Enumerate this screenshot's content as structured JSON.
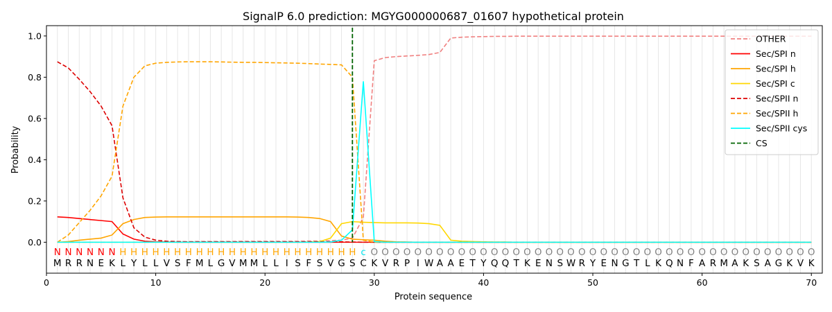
{
  "chart_data": {
    "type": "line",
    "title": "SignalP 6.0 prediction: MGYG000000687_01607 hypothetical protein",
    "xlabel": "Protein sequence",
    "ylabel": "Probability",
    "xlim": [
      0,
      71
    ],
    "ylim": [
      -0.15,
      1.05
    ],
    "x_ticks": [
      0,
      10,
      20,
      30,
      40,
      50,
      60,
      70
    ],
    "y_ticks": [
      0.0,
      0.2,
      0.4,
      0.6,
      0.8,
      1.0
    ],
    "x_tick_labels": [
      "0",
      "10",
      "20",
      "30",
      "40",
      "50",
      "60",
      "70"
    ],
    "y_tick_labels": [
      "0.0",
      "0.2",
      "0.4",
      "0.6",
      "0.8",
      "1.0"
    ],
    "grid": "vertical lines at each residue",
    "legend_position": "top-right",
    "sequence": [
      "M",
      "R",
      "R",
      "N",
      "E",
      "K",
      "L",
      "Y",
      "L",
      "L",
      "V",
      "S",
      "F",
      "M",
      "L",
      "G",
      "V",
      "M",
      "M",
      "L",
      "L",
      "I",
      "S",
      "F",
      "S",
      "V",
      "G",
      "S",
      "C",
      "K",
      "V",
      "R",
      "P",
      "I",
      "W",
      "A",
      "A",
      "E",
      "T",
      "Y",
      "Q",
      "Q",
      "T",
      "K",
      "E",
      "N",
      "S",
      "W",
      "R",
      "Y",
      "E",
      "N",
      "G",
      "T",
      "L",
      "K",
      "Q",
      "N",
      "F",
      "A",
      "R",
      "M",
      "A",
      "K",
      "S",
      "A",
      "G",
      "K",
      "V",
      "K"
    ],
    "labels": [
      "N",
      "N",
      "N",
      "N",
      "N",
      "N",
      "H",
      "H",
      "H",
      "H",
      "H",
      "H",
      "H",
      "H",
      "H",
      "H",
      "H",
      "H",
      "H",
      "H",
      "H",
      "H",
      "H",
      "H",
      "H",
      "H",
      "H",
      "H",
      "C",
      "O",
      "O",
      "O",
      "O",
      "O",
      "O",
      "O",
      "O",
      "O",
      "O",
      "O",
      "O",
      "O",
      "O",
      "O",
      "O",
      "O",
      "O",
      "O",
      "O",
      "O",
      "O",
      "O",
      "O",
      "O",
      "O",
      "O",
      "O",
      "O",
      "O",
      "O",
      "O",
      "O",
      "O",
      "O",
      "O",
      "O",
      "O",
      "O",
      "O",
      "O"
    ],
    "label_colors": {
      "N": "#ff0000",
      "H": "#ffa500",
      "C": "#00e5ee",
      "O": "#808080"
    },
    "cleavage_site": 28,
    "series": [
      {
        "name": "OTHER",
        "color": "#f08080",
        "dash": "dashed",
        "values": [
          0.0,
          0.0,
          0.0,
          0.0,
          0.0,
          0.0,
          0.0,
          0.0,
          0.0,
          0.001,
          0.002,
          0.003,
          0.003,
          0.004,
          0.004,
          0.004,
          0.004,
          0.005,
          0.005,
          0.005,
          0.005,
          0.005,
          0.005,
          0.006,
          0.006,
          0.008,
          0.01,
          0.02,
          0.12,
          0.88,
          0.895,
          0.9,
          0.903,
          0.906,
          0.91,
          0.92,
          0.99,
          0.994,
          0.996,
          0.997,
          0.998,
          0.998,
          0.999,
          0.999,
          0.999,
          0.999,
          0.999,
          0.999,
          0.999,
          0.999,
          0.999,
          0.999,
          0.999,
          0.999,
          0.999,
          0.999,
          0.999,
          0.999,
          0.999,
          0.999,
          0.999,
          0.999,
          0.999,
          0.999,
          0.999,
          0.999,
          0.999,
          0.999,
          0.999,
          0.999
        ]
      },
      {
        "name": "Sec/SPI n",
        "color": "#ff0000",
        "dash": "solid",
        "values": [
          0.123,
          0.12,
          0.115,
          0.11,
          0.105,
          0.1,
          0.04,
          0.015,
          0.005,
          0.002,
          0.001,
          0.0,
          0.0,
          0.0,
          0.0,
          0.0,
          0.0,
          0.0,
          0.0,
          0.0,
          0.0,
          0.0,
          0.0,
          0.0,
          0.0,
          0.0,
          0.0,
          0.0,
          0.0,
          0.0,
          0.0,
          0.0,
          0.0,
          0.0,
          0.0,
          0.0,
          0.0,
          0.0,
          0.0,
          0.0,
          0.0,
          0.0,
          0.0,
          0.0,
          0.0,
          0.0,
          0.0,
          0.0,
          0.0,
          0.0,
          0.0,
          0.0,
          0.0,
          0.0,
          0.0,
          0.0,
          0.0,
          0.0,
          0.0,
          0.0,
          0.0,
          0.0,
          0.0,
          0.0,
          0.0,
          0.0,
          0.0,
          0.0,
          0.0,
          0.0
        ]
      },
      {
        "name": "Sec/SPI h",
        "color": "#ffa500",
        "dash": "solid",
        "values": [
          0.0,
          0.003,
          0.01,
          0.015,
          0.02,
          0.035,
          0.09,
          0.11,
          0.12,
          0.122,
          0.123,
          0.123,
          0.123,
          0.123,
          0.123,
          0.123,
          0.123,
          0.123,
          0.123,
          0.123,
          0.123,
          0.123,
          0.122,
          0.12,
          0.115,
          0.1,
          0.03,
          0.015,
          0.012,
          0.01,
          0.005,
          0.002,
          0.001,
          0.0,
          0.0,
          0.0,
          0.0,
          0.0,
          0.0,
          0.0,
          0.0,
          0.0,
          0.0,
          0.0,
          0.0,
          0.0,
          0.0,
          0.0,
          0.0,
          0.0,
          0.0,
          0.0,
          0.0,
          0.0,
          0.0,
          0.0,
          0.0,
          0.0,
          0.0,
          0.0,
          0.0,
          0.0,
          0.0,
          0.0,
          0.0,
          0.0,
          0.0,
          0.0,
          0.0,
          0.0
        ]
      },
      {
        "name": "Sec/SPI c",
        "color": "#ffd700",
        "dash": "solid",
        "values": [
          0.0,
          0.0,
          0.0,
          0.0,
          0.0,
          0.0,
          0.0,
          0.0,
          0.0,
          0.0,
          0.0,
          0.0,
          0.0,
          0.0,
          0.0,
          0.0,
          0.0,
          0.0,
          0.0,
          0.0,
          0.0,
          0.0,
          0.0,
          0.001,
          0.003,
          0.02,
          0.09,
          0.1,
          0.097,
          0.095,
          0.094,
          0.094,
          0.094,
          0.093,
          0.09,
          0.082,
          0.01,
          0.005,
          0.003,
          0.002,
          0.001,
          0.001,
          0.0,
          0.0,
          0.0,
          0.0,
          0.0,
          0.0,
          0.0,
          0.0,
          0.0,
          0.0,
          0.0,
          0.0,
          0.0,
          0.0,
          0.0,
          0.0,
          0.0,
          0.0,
          0.0,
          0.0,
          0.0,
          0.0,
          0.0,
          0.0,
          0.0,
          0.0,
          0.0,
          0.0
        ]
      },
      {
        "name": "Sec/SPII n",
        "color": "#dd0000",
        "dash": "dashed",
        "values": [
          0.875,
          0.845,
          0.79,
          0.73,
          0.66,
          0.565,
          0.215,
          0.07,
          0.025,
          0.01,
          0.005,
          0.003,
          0.002,
          0.002,
          0.002,
          0.002,
          0.002,
          0.002,
          0.002,
          0.002,
          0.002,
          0.002,
          0.002,
          0.002,
          0.002,
          0.002,
          0.002,
          0.001,
          0.0,
          0.0,
          0.0,
          0.0,
          0.0,
          0.0,
          0.0,
          0.0,
          0.0,
          0.0,
          0.0,
          0.0,
          0.0,
          0.0,
          0.0,
          0.0,
          0.0,
          0.0,
          0.0,
          0.0,
          0.0,
          0.0,
          0.0,
          0.0,
          0.0,
          0.0,
          0.0,
          0.0,
          0.0,
          0.0,
          0.0,
          0.0,
          0.0,
          0.0,
          0.0,
          0.0,
          0.0,
          0.0,
          0.0,
          0.0,
          0.0,
          0.0
        ]
      },
      {
        "name": "Sec/SPII h",
        "color": "#ffa500",
        "dash": "dashed",
        "values": [
          0.0,
          0.035,
          0.095,
          0.155,
          0.225,
          0.32,
          0.66,
          0.8,
          0.855,
          0.868,
          0.872,
          0.874,
          0.875,
          0.875,
          0.875,
          0.874,
          0.873,
          0.872,
          0.872,
          0.871,
          0.87,
          0.869,
          0.868,
          0.866,
          0.864,
          0.862,
          0.86,
          0.8,
          0.01,
          0.0,
          0.0,
          0.0,
          0.0,
          0.0,
          0.0,
          0.0,
          0.0,
          0.0,
          0.0,
          0.0,
          0.0,
          0.0,
          0.0,
          0.0,
          0.0,
          0.0,
          0.0,
          0.0,
          0.0,
          0.0,
          0.0,
          0.0,
          0.0,
          0.0,
          0.0,
          0.0,
          0.0,
          0.0,
          0.0,
          0.0,
          0.0,
          0.0,
          0.0,
          0.0,
          0.0,
          0.0,
          0.0,
          0.0,
          0.0,
          0.0
        ]
      },
      {
        "name": "Sec/SPII cys",
        "color": "#00ffff",
        "dash": "solid",
        "values": [
          0.0,
          0.0,
          0.0,
          0.0,
          0.0,
          0.0,
          0.0,
          0.0,
          0.0,
          0.0,
          0.0,
          0.0,
          0.0,
          0.0,
          0.0,
          0.0,
          0.0,
          0.0,
          0.0,
          0.0,
          0.0,
          0.0,
          0.0,
          0.0,
          0.0,
          0.001,
          0.01,
          0.06,
          0.78,
          0.003,
          0.0,
          0.0,
          0.0,
          0.0,
          0.0,
          0.0,
          0.0,
          0.0,
          0.0,
          0.0,
          0.0,
          0.0,
          0.0,
          0.0,
          0.0,
          0.0,
          0.0,
          0.0,
          0.0,
          0.0,
          0.0,
          0.0,
          0.0,
          0.0,
          0.0,
          0.0,
          0.0,
          0.0,
          0.0,
          0.0,
          0.0,
          0.0,
          0.0,
          0.0,
          0.0,
          0.0,
          0.0,
          0.0,
          0.0,
          0.0
        ]
      }
    ],
    "cs_series": {
      "name": "CS",
      "color": "#006400",
      "dash": "dashed"
    }
  }
}
